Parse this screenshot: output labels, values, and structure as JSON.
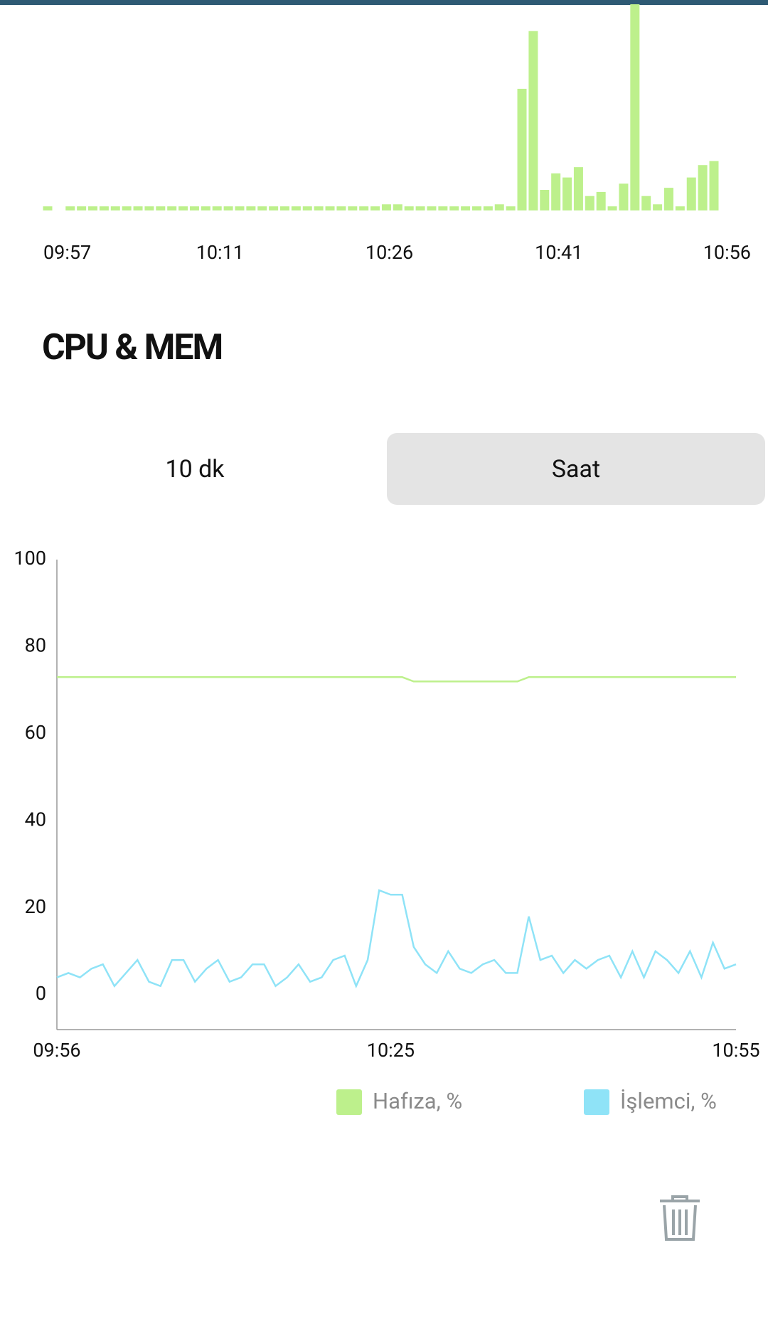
{
  "chart_data": [
    {
      "type": "bar",
      "color": "#bdf08c",
      "ylim": [
        0,
        100
      ],
      "categories": [
        "09:57",
        null,
        null,
        null,
        null,
        null,
        null,
        null,
        null,
        null,
        null,
        null,
        null,
        null,
        "10:11",
        null,
        null,
        null,
        null,
        null,
        null,
        null,
        null,
        null,
        null,
        null,
        null,
        null,
        null,
        "10:26",
        null,
        null,
        null,
        null,
        null,
        null,
        null,
        null,
        null,
        null,
        null,
        null,
        null,
        null,
        "10:41",
        null,
        null,
        null,
        null,
        null,
        null,
        null,
        null,
        null,
        null,
        null,
        null,
        null,
        null,
        "10:56"
      ],
      "values": [
        2,
        null,
        2,
        2,
        2,
        2,
        2,
        2,
        2,
        2,
        2,
        2,
        2,
        2,
        2,
        2,
        2,
        2,
        2,
        2,
        2,
        2,
        2,
        2,
        2,
        2,
        2,
        2,
        2,
        2,
        3,
        3,
        2,
        2,
        2,
        2,
        2,
        2,
        2,
        2,
        3,
        2,
        59,
        87,
        10,
        18,
        16,
        21,
        7,
        9,
        2,
        13,
        100,
        7,
        3,
        11,
        2,
        16,
        22,
        24
      ]
    },
    {
      "type": "line",
      "title": "CPU & MEM",
      "ylim": [
        -8,
        100
      ],
      "yticks": [
        0,
        20,
        40,
        60,
        80,
        100
      ],
      "categories": [
        "09:56",
        null,
        null,
        null,
        null,
        null,
        null,
        null,
        null,
        null,
        null,
        null,
        null,
        null,
        null,
        null,
        null,
        null,
        null,
        null,
        null,
        null,
        null,
        null,
        null,
        null,
        null,
        null,
        null,
        "10:25",
        null,
        null,
        null,
        null,
        null,
        null,
        null,
        null,
        null,
        null,
        null,
        null,
        null,
        null,
        null,
        null,
        null,
        null,
        null,
        null,
        null,
        null,
        null,
        null,
        null,
        null,
        null,
        null,
        null,
        "10:55"
      ],
      "series": [
        {
          "name": "Hafıza, %",
          "color": "#bdf08c",
          "values": [
            73,
            73,
            73,
            73,
            73,
            73,
            73,
            73,
            73,
            73,
            73,
            73,
            73,
            73,
            73,
            73,
            73,
            73,
            73,
            73,
            73,
            73,
            73,
            73,
            73,
            73,
            73,
            73,
            73,
            73,
            73,
            72,
            72,
            72,
            72,
            72,
            72,
            72,
            72,
            72,
            72,
            73,
            73,
            73,
            73,
            73,
            73,
            73,
            73,
            73,
            73,
            73,
            73,
            73,
            73,
            73,
            73,
            73,
            73,
            73
          ]
        },
        {
          "name": "İşlemci, %",
          "color": "#8fe3f7",
          "values": [
            4,
            5,
            4,
            6,
            7,
            2,
            5,
            8,
            3,
            2,
            8,
            8,
            3,
            6,
            8,
            3,
            4,
            7,
            7,
            2,
            4,
            7,
            3,
            4,
            8,
            9,
            2,
            8,
            24,
            23,
            23,
            11,
            7,
            5,
            10,
            6,
            5,
            7,
            8,
            5,
            5,
            18,
            8,
            9,
            5,
            8,
            6,
            8,
            9,
            4,
            10,
            4,
            10,
            8,
            5,
            10,
            4,
            12,
            6,
            7
          ]
        }
      ]
    }
  ],
  "tabs": [
    "10 dk",
    "Saat"
  ],
  "selected_tab": 1
}
